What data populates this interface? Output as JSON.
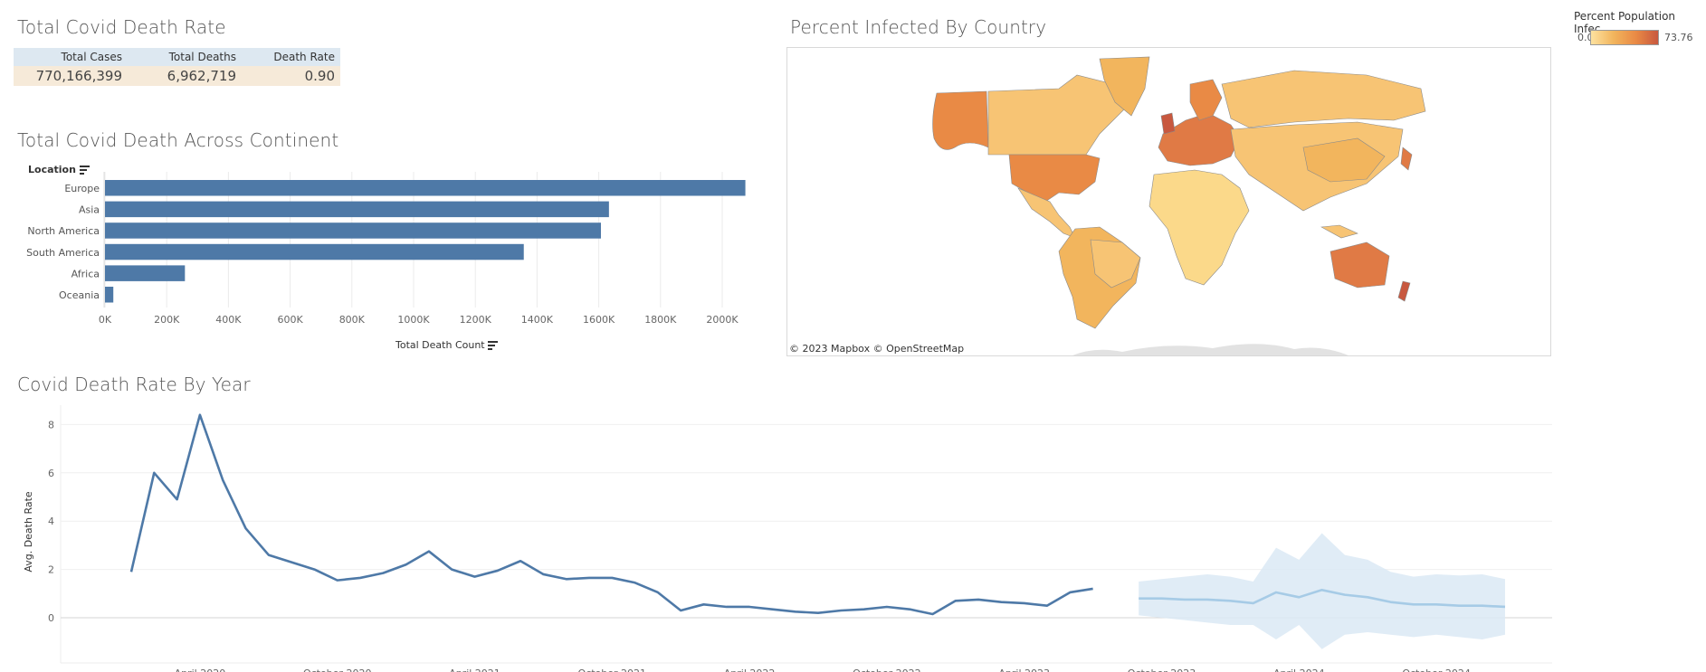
{
  "kpi": {
    "title": "Total Covid Death Rate",
    "headers": [
      "Total Cases",
      "Total Deaths",
      "Death Rate"
    ],
    "values": [
      "770,166,399",
      "6,962,719",
      "0.90"
    ]
  },
  "continent": {
    "title": "Total Covid Death Across Continent",
    "axis_field_label": "Location",
    "xlabel": "Total Death Count",
    "ticks": [
      "0K",
      "200K",
      "400K",
      "600K",
      "800K",
      "1000K",
      "1200K",
      "1400K",
      "1600K",
      "1800K",
      "2000K"
    ],
    "bar_color": "#4e79a7"
  },
  "map": {
    "title": "Percent Infected By Country",
    "attribution": "© 2023 Mapbox  © OpenStreetMap",
    "legend_title": "Percent Population Infec...",
    "legend_min": "0.00",
    "legend_max": "73.76",
    "colors": {
      "low": "#fde2a0",
      "mid": "#f2b55d",
      "high": "#c8583f",
      "border": "#8a8a8a",
      "land_grey": "#e2e2e2"
    }
  },
  "yearly": {
    "title": "Covid Death Rate By Year",
    "ylabel": "Avg. Death Rate",
    "yticks": [
      "8",
      "6",
      "4",
      "2",
      "0"
    ],
    "xticks": [
      "April 2020",
      "October 2020",
      "April 2021",
      "October 2021",
      "April 2022",
      "October 2022",
      "April 2023",
      "October 2023",
      "April 2024",
      "October 2024"
    ],
    "line_color": "#4e79a7",
    "forecast_color": "#a6cbe6",
    "band_color": "#dbe9f5"
  },
  "chart_data": [
    {
      "type": "bar",
      "title": "Total Covid Death Across Continent",
      "categories": [
        "Europe",
        "Asia",
        "North America",
        "South America",
        "Africa",
        "Oceania"
      ],
      "values": [
        2075000,
        1633000,
        1607000,
        1357000,
        259000,
        27000
      ],
      "xlabel": "Total Death Count",
      "ylabel": "Location",
      "xlim": [
        0,
        2200000
      ],
      "grid": true
    },
    {
      "type": "line",
      "title": "Covid Death Rate By Year",
      "ylabel": "Avg. Death Rate",
      "ylim": [
        -1.8,
        8.8
      ],
      "grid": true,
      "series": [
        {
          "x": [
            "2020-01",
            "2020-02",
            "2020-03",
            "2020-04",
            "2020-05",
            "2020-06",
            "2020-07",
            "2020-08",
            "2020-09",
            "2020-10",
            "2020-11",
            "2020-12",
            "2021-01",
            "2021-02",
            "2021-03",
            "2021-04",
            "2021-05",
            "2021-06",
            "2021-07",
            "2021-08",
            "2021-09",
            "2021-10",
            "2021-11",
            "2021-12",
            "2022-01",
            "2022-02",
            "2022-03",
            "2022-04",
            "2022-05",
            "2022-06",
            "2022-07",
            "2022-08",
            "2022-09",
            "2022-10",
            "2022-11",
            "2022-12",
            "2023-01",
            "2023-02",
            "2023-03",
            "2023-04",
            "2023-05",
            "2023-06",
            "2023-07",
            "2023-08"
          ],
          "values": [
            1.9,
            6.0,
            4.9,
            8.4,
            5.7,
            3.7,
            2.6,
            2.3,
            2.0,
            1.55,
            1.65,
            1.85,
            2.2,
            2.75,
            2.0,
            1.7,
            1.95,
            2.35,
            1.8,
            1.6,
            1.65,
            1.65,
            1.45,
            1.05,
            0.3,
            0.55,
            0.45,
            0.45,
            0.35,
            0.25,
            0.2,
            0.3,
            0.35,
            0.45,
            0.35,
            0.15,
            0.7,
            0.75,
            0.65,
            0.6,
            0.5,
            1.05,
            1.2,
            null
          ]
        },
        {
          "x": [
            "2023-09",
            "2023-10",
            "2023-11",
            "2023-12",
            "2024-01",
            "2024-02",
            "2024-03",
            "2024-04",
            "2024-05",
            "2024-06",
            "2024-07",
            "2024-08",
            "2024-09",
            "2024-10",
            "2024-11",
            "2024-12",
            "2025-01"
          ],
          "values": [
            0.8,
            0.8,
            0.75,
            0.75,
            0.7,
            0.6,
            1.05,
            0.85,
            1.15,
            0.95,
            0.85,
            0.65,
            0.55,
            0.55,
            0.5,
            0.5,
            0.45
          ],
          "upper": [
            1.5,
            1.6,
            1.7,
            1.8,
            1.7,
            1.5,
            2.9,
            2.4,
            3.5,
            2.6,
            2.4,
            1.9,
            1.7,
            1.8,
            1.75,
            1.8,
            1.6
          ],
          "lower": [
            0.1,
            0.0,
            -0.1,
            -0.2,
            -0.3,
            -0.3,
            -0.9,
            -0.3,
            -1.3,
            -0.7,
            -0.6,
            -0.7,
            -0.8,
            -0.7,
            -0.8,
            -0.9,
            -0.7
          ]
        }
      ]
    }
  ]
}
